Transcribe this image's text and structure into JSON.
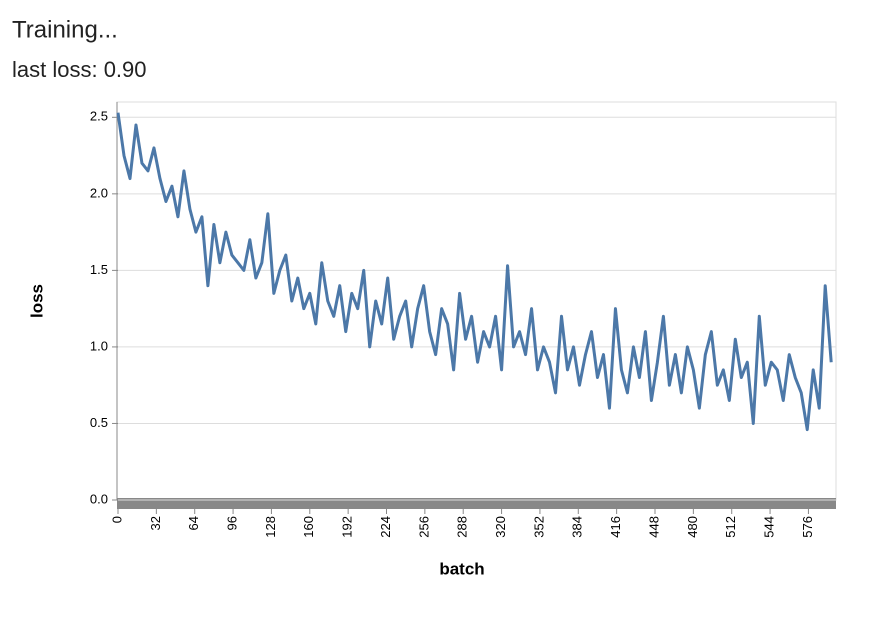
{
  "chart_data": {
    "type": "line",
    "title": "Training...",
    "subtitle": "last loss: 0.90",
    "x_label": "batch",
    "y_label": "loss",
    "xlim": [
      0,
      599
    ],
    "ylim": [
      0,
      2.6
    ],
    "xticks": [
      0,
      32,
      64,
      96,
      128,
      160,
      192,
      224,
      256,
      288,
      320,
      352,
      384,
      416,
      448,
      480,
      512,
      544,
      576
    ],
    "yticks": [
      {
        "value": 0,
        "label": "0.0"
      },
      0.5,
      {
        "value": 1,
        "label": "1.0"
      },
      1.5,
      {
        "value": 2,
        "label": "2.0"
      },
      2.5
    ],
    "grid": true,
    "series": [
      {
        "color": "#4c78a8",
        "x": [
          0,
          5,
          10,
          15,
          20,
          25,
          30,
          35,
          40,
          45,
          50,
          55,
          60,
          65,
          70,
          75,
          80,
          85,
          90,
          95,
          100,
          105,
          110,
          115,
          120,
          125,
          130,
          135,
          140,
          145,
          150,
          155,
          160,
          165,
          170,
          175,
          180,
          185,
          190,
          195,
          200,
          205,
          210,
          215,
          220,
          225,
          230,
          235,
          240,
          245,
          250,
          255,
          260,
          265,
          270,
          275,
          280,
          285,
          290,
          295,
          300,
          305,
          310,
          315,
          320,
          325,
          330,
          335,
          340,
          345,
          350,
          355,
          360,
          365,
          370,
          375,
          380,
          385,
          390,
          395,
          400,
          405,
          410,
          415,
          420,
          425,
          430,
          435,
          440,
          445,
          450,
          455,
          460,
          465,
          470,
          475,
          480,
          485,
          490,
          495,
          500,
          505,
          510,
          515,
          520,
          525,
          530,
          535,
          540,
          545,
          550,
          555,
          560,
          565,
          570,
          575,
          580,
          585,
          590,
          595
        ],
        "values": [
          2.53,
          2.25,
          2.1,
          2.45,
          2.2,
          2.15,
          2.3,
          2.1,
          1.95,
          2.05,
          1.85,
          2.15,
          1.9,
          1.75,
          1.85,
          1.4,
          1.8,
          1.55,
          1.75,
          1.6,
          1.55,
          1.5,
          1.7,
          1.45,
          1.55,
          1.87,
          1.35,
          1.5,
          1.6,
          1.3,
          1.45,
          1.25,
          1.35,
          1.15,
          1.55,
          1.3,
          1.2,
          1.4,
          1.1,
          1.35,
          1.25,
          1.5,
          1.0,
          1.3,
          1.15,
          1.45,
          1.05,
          1.2,
          1.3,
          1.0,
          1.25,
          1.4,
          1.1,
          0.95,
          1.25,
          1.15,
          0.85,
          1.35,
          1.05,
          1.2,
          0.9,
          1.1,
          1.0,
          1.2,
          0.85,
          1.53,
          1.0,
          1.1,
          0.95,
          1.25,
          0.85,
          1.0,
          0.9,
          0.7,
          1.2,
          0.85,
          1.0,
          0.75,
          0.95,
          1.1,
          0.8,
          0.95,
          0.6,
          1.25,
          0.85,
          0.7,
          1.0,
          0.8,
          1.1,
          0.65,
          0.9,
          1.2,
          0.75,
          0.95,
          0.7,
          1.0,
          0.85,
          0.6,
          0.95,
          1.1,
          0.75,
          0.85,
          0.65,
          1.05,
          0.8,
          0.9,
          0.5,
          1.2,
          0.75,
          0.9,
          0.85,
          0.65,
          0.95,
          0.8,
          0.7,
          0.46,
          0.85,
          0.6,
          1.4,
          0.9
        ]
      }
    ]
  }
}
